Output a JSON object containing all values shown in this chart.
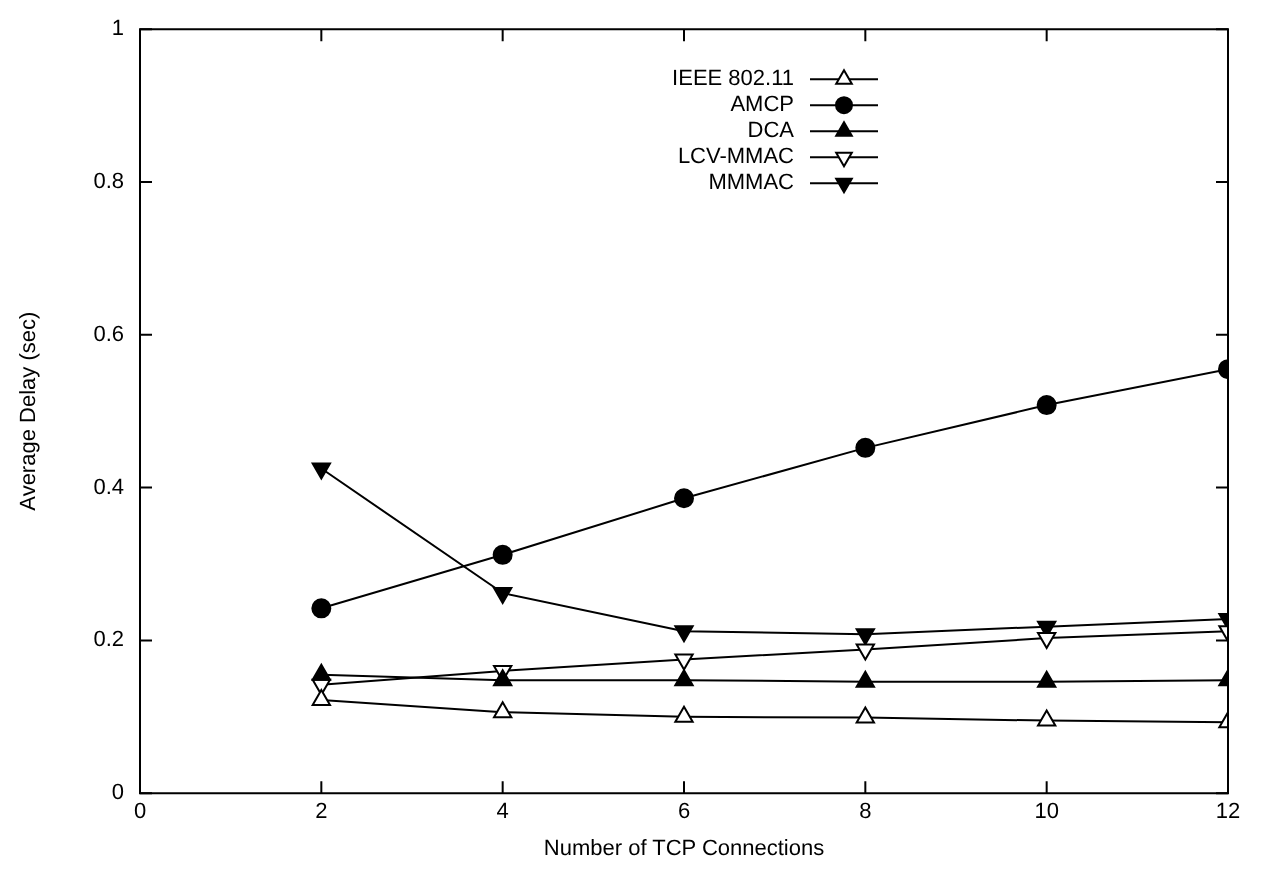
{
  "chart_data": {
    "type": "line",
    "xlabel": "Number of TCP Connections",
    "ylabel": "Average Delay (sec)",
    "x": [
      2,
      4,
      6,
      8,
      10,
      12
    ],
    "xlim": [
      0,
      12
    ],
    "xticks": [
      0,
      2,
      4,
      6,
      8,
      10,
      12
    ],
    "ylim": [
      0,
      1
    ],
    "yticks": [
      0,
      0.2,
      0.4,
      0.6,
      0.8,
      1
    ],
    "grid": false,
    "legend": "top",
    "line_style": "solid",
    "series": [
      {
        "name": "IEEE 802.11",
        "color": "#000000",
        "marker": "triangle-open",
        "values": [
          0.122,
          0.106,
          0.1,
          0.099,
          0.095,
          0.093
        ]
      },
      {
        "name": "AMCP",
        "color": "#000000",
        "marker": "circle",
        "values": [
          0.242,
          0.312,
          0.386,
          0.452,
          0.508,
          0.555
        ]
      },
      {
        "name": "DCA",
        "color": "#000000",
        "marker": "triangle",
        "values": [
          0.155,
          0.148,
          0.148,
          0.146,
          0.146,
          0.148
        ]
      },
      {
        "name": "LCV-MMAC",
        "color": "#000000",
        "marker": "triangle-down-open",
        "values": [
          0.142,
          0.16,
          0.175,
          0.188,
          0.203,
          0.212
        ]
      },
      {
        "name": "MMMAC",
        "color": "#000000",
        "marker": "triangle-down",
        "values": [
          0.425,
          0.262,
          0.212,
          0.208,
          0.218,
          0.228
        ]
      }
    ]
  }
}
